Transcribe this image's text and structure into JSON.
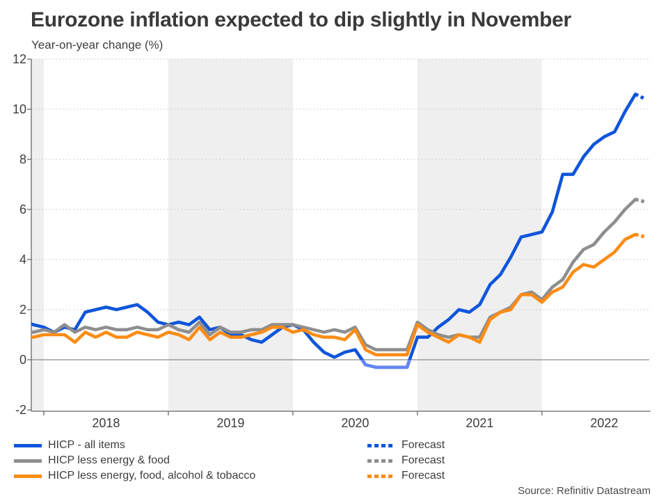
{
  "header": {
    "title": "Eurozone inflation expected to dip slightly in November",
    "subtitle": "Year-on-year change (%)"
  },
  "source": "Source: Refinitiv Datastream",
  "legend": {
    "forecast_label": "Forecast"
  },
  "chart_data": {
    "type": "line",
    "title": "Eurozone inflation expected to dip slightly in November",
    "ylabel": "Year-on-year change (%)",
    "ylim": [
      -2,
      12
    ],
    "yticks": [
      12,
      10,
      8,
      6,
      4,
      2,
      0,
      -2
    ],
    "grid": "horizontal-dotted",
    "legend_position": "bottom",
    "months": [
      "2017-11",
      "2017-12",
      "2018-01",
      "2018-02",
      "2018-03",
      "2018-04",
      "2018-05",
      "2018-06",
      "2018-07",
      "2018-08",
      "2018-09",
      "2018-10",
      "2018-11",
      "2018-12",
      "2019-01",
      "2019-02",
      "2019-03",
      "2019-04",
      "2019-05",
      "2019-06",
      "2019-07",
      "2019-08",
      "2019-09",
      "2019-10",
      "2019-11",
      "2019-12",
      "2020-01",
      "2020-02",
      "2020-03",
      "2020-04",
      "2020-05",
      "2020-06",
      "2020-07",
      "2020-08",
      "2020-09",
      "2020-10",
      "2020-11",
      "2020-12",
      "2021-01",
      "2021-02",
      "2021-03",
      "2021-04",
      "2021-05",
      "2021-06",
      "2021-07",
      "2021-08",
      "2021-09",
      "2021-10",
      "2021-11",
      "2021-12",
      "2022-01",
      "2022-02",
      "2022-03",
      "2022-04",
      "2022-05",
      "2022-06",
      "2022-07",
      "2022-08",
      "2022-09",
      "2022-10",
      "2022-11"
    ],
    "year_ticks": [
      {
        "label": "2018",
        "start": "2018-01"
      },
      {
        "label": "2019",
        "start": "2019-01"
      },
      {
        "label": "2020",
        "start": "2020-01"
      },
      {
        "label": "2021",
        "start": "2021-01"
      },
      {
        "label": "2022",
        "start": "2022-01"
      }
    ],
    "shaded_bands": [
      {
        "from": "2017-11",
        "to": "2018-01"
      },
      {
        "from": "2019-01",
        "to": "2020-01"
      },
      {
        "from": "2021-01",
        "to": "2022-01"
      }
    ],
    "band_color": "#efefef",
    "grid_color": "#cccccc",
    "zero_line_color": "#8a8a8a",
    "axis_color": "#666666",
    "series": [
      {
        "name": "HICP - all items",
        "color": "#0f55db",
        "negative_color": "#6286f2",
        "values": [
          1.5,
          1.4,
          1.3,
          1.1,
          1.3,
          1.2,
          1.9,
          2.0,
          2.1,
          2.0,
          2.1,
          2.2,
          1.9,
          1.5,
          1.4,
          1.5,
          1.4,
          1.7,
          1.2,
          1.3,
          1.0,
          1.0,
          0.8,
          0.7,
          1.0,
          1.3,
          1.4,
          1.2,
          0.7,
          0.3,
          0.1,
          0.3,
          0.4,
          -0.2,
          -0.3,
          -0.3,
          -0.3,
          -0.3,
          0.9,
          0.9,
          1.3,
          1.6,
          2.0,
          1.9,
          2.2,
          3.0,
          3.4,
          4.1,
          4.9,
          5.0,
          5.1,
          5.9,
          7.4,
          7.4,
          8.1,
          8.6,
          8.9,
          9.1,
          9.9,
          10.6
        ],
        "forecast_value": 10.4
      },
      {
        "name": "HICP less energy & food",
        "color": "#8e8e8e",
        "values": [
          1.1,
          1.1,
          1.2,
          1.1,
          1.4,
          1.1,
          1.3,
          1.2,
          1.3,
          1.2,
          1.2,
          1.3,
          1.2,
          1.2,
          1.4,
          1.2,
          1.1,
          1.5,
          1.0,
          1.3,
          1.1,
          1.1,
          1.2,
          1.2,
          1.4,
          1.4,
          1.4,
          1.3,
          1.2,
          1.1,
          1.2,
          1.1,
          1.3,
          0.6,
          0.4,
          0.4,
          0.4,
          0.4,
          1.5,
          1.2,
          1.0,
          0.9,
          1.0,
          0.9,
          0.9,
          1.7,
          1.9,
          2.1,
          2.6,
          2.7,
          2.4,
          2.9,
          3.2,
          3.9,
          4.4,
          4.6,
          5.1,
          5.5,
          6.0,
          6.4
        ],
        "forecast_value": 6.3
      },
      {
        "name": "HICP less energy, food, alcohol & tobacco",
        "color": "#fb8c15",
        "values": [
          0.9,
          0.9,
          1.0,
          1.0,
          1.0,
          0.7,
          1.1,
          0.9,
          1.1,
          0.9,
          0.9,
          1.1,
          1.0,
          0.9,
          1.1,
          1.0,
          0.8,
          1.3,
          0.8,
          1.1,
          0.9,
          0.9,
          1.0,
          1.1,
          1.3,
          1.3,
          1.1,
          1.2,
          1.0,
          0.9,
          0.9,
          0.8,
          1.2,
          0.4,
          0.2,
          0.2,
          0.2,
          0.2,
          1.4,
          1.1,
          0.9,
          0.7,
          1.0,
          0.9,
          0.7,
          1.6,
          1.9,
          2.0,
          2.6,
          2.6,
          2.3,
          2.7,
          2.9,
          3.5,
          3.8,
          3.7,
          4.0,
          4.3,
          4.8,
          5.0
        ],
        "forecast_value": 4.9
      }
    ]
  }
}
